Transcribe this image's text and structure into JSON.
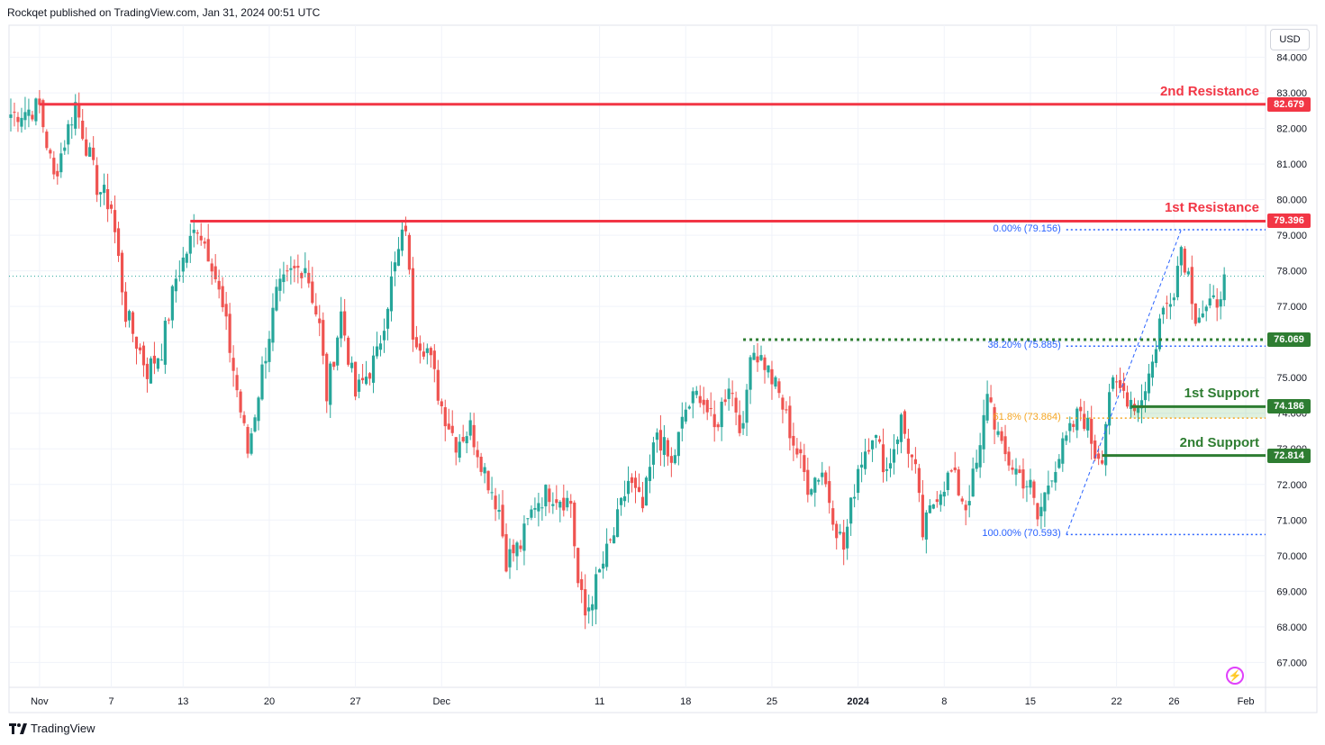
{
  "header": {
    "attribution": "Rockqet published on TradingView.com, Jan 31, 2024 00:51 UTC"
  },
  "footer": {
    "logo_text": "TradingView"
  },
  "currency": "USD",
  "colors": {
    "up": "#26a69a",
    "down": "#ef5350",
    "resistance": "#f23645",
    "support": "#2e7d32",
    "fib_blue": "#2962ff",
    "fib_orange": "#f5a623",
    "grid": "#f0f3fa",
    "axis_text": "#131722"
  },
  "chart_data": {
    "type": "candlestick",
    "title": "",
    "xlabel": "",
    "ylabel": "",
    "ylim": [
      66.3,
      84.9
    ],
    "y_ticks": [
      "84.000",
      "83.000",
      "82.000",
      "81.000",
      "80.000",
      "79.000",
      "78.000",
      "77.000",
      "76.000",
      "75.000",
      "74.000",
      "73.000",
      "72.000",
      "71.000",
      "70.000",
      "69.000",
      "68.000",
      "67.000"
    ],
    "x_ticks": [
      {
        "label": "Nov",
        "bar": 8
      },
      {
        "label": "7",
        "bar": 28
      },
      {
        "label": "13",
        "bar": 48
      },
      {
        "label": "20",
        "bar": 72
      },
      {
        "label": "27",
        "bar": 96
      },
      {
        "label": "Dec",
        "bar": 120
      },
      {
        "label": "11",
        "bar": 164
      },
      {
        "label": "18",
        "bar": 188
      },
      {
        "label": "25",
        "bar": 212
      },
      {
        "label": "2024",
        "bar": 236,
        "bold": true
      },
      {
        "label": "8",
        "bar": 260
      },
      {
        "label": "15",
        "bar": 284
      },
      {
        "label": "22",
        "bar": 308
      },
      {
        "label": "26",
        "bar": 324
      },
      {
        "label": "Feb",
        "bar": 344
      }
    ],
    "total_bars": 350,
    "anchors": [
      [
        0,
        82.4
      ],
      [
        8,
        82.6
      ],
      [
        12,
        80.6
      ],
      [
        18,
        82.7
      ],
      [
        24,
        80.4
      ],
      [
        28,
        79.8
      ],
      [
        32,
        76.8
      ],
      [
        38,
        75.2
      ],
      [
        42,
        75.8
      ],
      [
        46,
        77.8
      ],
      [
        52,
        79.3
      ],
      [
        56,
        78.3
      ],
      [
        60,
        76.4
      ],
      [
        66,
        72.9
      ],
      [
        70,
        75.2
      ],
      [
        74,
        77.3
      ],
      [
        78,
        77.9
      ],
      [
        82,
        78.2
      ],
      [
        86,
        76.4
      ],
      [
        88,
        74.5
      ],
      [
        92,
        76.8
      ],
      [
        96,
        74.5
      ],
      [
        102,
        75.6
      ],
      [
        106,
        77.7
      ],
      [
        110,
        79.3
      ],
      [
        112,
        76.3
      ],
      [
        116,
        75.8
      ],
      [
        120,
        74.2
      ],
      [
        124,
        73.2
      ],
      [
        128,
        73.6
      ],
      [
        132,
        72.4
      ],
      [
        136,
        71.3
      ],
      [
        138,
        69.9
      ],
      [
        142,
        70.3
      ],
      [
        146,
        71.5
      ],
      [
        150,
        71.8
      ],
      [
        156,
        71.5
      ],
      [
        158,
        69.2
      ],
      [
        160,
        68.3
      ],
      [
        164,
        69.5
      ],
      [
        168,
        70.6
      ],
      [
        172,
        72.1
      ],
      [
        176,
        71.3
      ],
      [
        180,
        73.5
      ],
      [
        184,
        72.5
      ],
      [
        188,
        74.1
      ],
      [
        192,
        74.6
      ],
      [
        196,
        73.5
      ],
      [
        200,
        74.9
      ],
      [
        204,
        73.4
      ],
      [
        206,
        75.9
      ],
      [
        210,
        75.4
      ],
      [
        214,
        74.5
      ],
      [
        218,
        73.2
      ],
      [
        222,
        72.0
      ],
      [
        226,
        72.4
      ],
      [
        230,
        70.8
      ],
      [
        232,
        70.2
      ],
      [
        236,
        72.5
      ],
      [
        240,
        73.5
      ],
      [
        244,
        72.4
      ],
      [
        248,
        73.8
      ],
      [
        252,
        72.3
      ],
      [
        254,
        70.6
      ],
      [
        258,
        71.8
      ],
      [
        262,
        72.3
      ],
      [
        266,
        71.4
      ],
      [
        270,
        72.9
      ],
      [
        272,
        74.7
      ],
      [
        276,
        72.9
      ],
      [
        280,
        72.4
      ],
      [
        284,
        71.9
      ],
      [
        286,
        71.0
      ],
      [
        290,
        72.4
      ],
      [
        294,
        73.2
      ],
      [
        298,
        74.1
      ],
      [
        300,
        73.6
      ],
      [
        302,
        72.9
      ],
      [
        304,
        72.9
      ],
      [
        306,
        74.7
      ],
      [
        310,
        74.6
      ],
      [
        314,
        74.2
      ],
      [
        318,
        75.4
      ],
      [
        320,
        76.6
      ],
      [
        324,
        77.6
      ],
      [
        326,
        78.7
      ],
      [
        328,
        77.9
      ],
      [
        330,
        76.8
      ],
      [
        334,
        76.9
      ],
      [
        336,
        77.2
      ],
      [
        338,
        77.9
      ]
    ],
    "levels": [
      {
        "name": "2nd Resistance",
        "value": 82.679,
        "label": "82.679",
        "kind": "resistance",
        "from_bar": 8
      },
      {
        "name": "1st Resistance",
        "value": 79.396,
        "label": "79.396",
        "kind": "resistance",
        "from_bar": 50
      },
      {
        "name": "",
        "value": 76.069,
        "label": "76.069",
        "kind": "support-dotted",
        "from_bar": 204
      },
      {
        "name": "1st Support",
        "value": 74.186,
        "label": "74.186",
        "kind": "support",
        "from_bar": 312
      },
      {
        "name": "2nd Support",
        "value": 72.814,
        "label": "72.814",
        "kind": "support",
        "from_bar": 304
      }
    ],
    "current_price": 77.85,
    "fibonacci": {
      "from_bar": 294,
      "to_bar": 326,
      "levels": [
        {
          "label": "0.00% (79.156)",
          "value": 79.156,
          "color": "#2962ff"
        },
        {
          "label": "38.20% (75.885)",
          "value": 75.885,
          "color": "#2962ff"
        },
        {
          "label": "61.8% (73.864)",
          "value": 73.864,
          "color": "#f5a623"
        },
        {
          "label": "100.00% (70.593)",
          "value": 70.593,
          "color": "#2962ff"
        }
      ]
    }
  }
}
